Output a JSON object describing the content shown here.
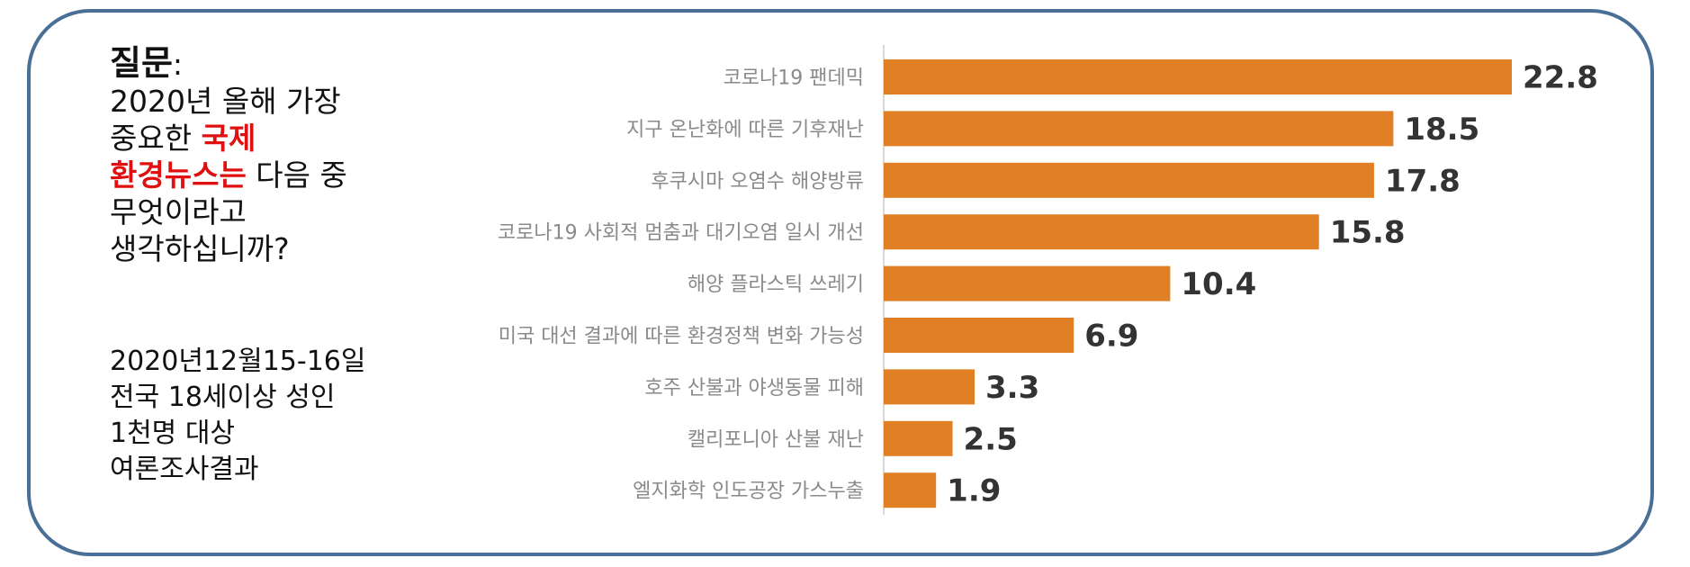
{
  "question": {
    "head": "질문",
    "colon": ":",
    "line1": "2020년 올해 가장",
    "line2_plain": "중요한 ",
    "line2_red": "국제",
    "line3_red": "환경뉴스는",
    "line3_plain": " 다음 중",
    "line4": "무엇이라고",
    "line5": "생각하십니까?"
  },
  "survey": {
    "line1": "2020년12월15-16일",
    "line2": "전국 18세이상 성인",
    "line3": "1천명 대상",
    "line4": "여론조사결과"
  },
  "colors": {
    "bar": "#e07f24",
    "frame": "#4a6f96",
    "highlight": "#e01010"
  },
  "chart_data": {
    "type": "bar",
    "orientation": "horizontal",
    "categories": [
      "코로나19 팬데믹",
      "지구 온난화에 따른 기후재난",
      "후쿠시마 오염수 해양방류",
      "코로나19 사회적 멈춤과 대기오염 일시 개선",
      "해양 플라스틱 쓰레기",
      "미국 대선 결과에 따른 환경정책 변화 가능성",
      "호주 산불과 야생동물 피해",
      "캘리포니아 산불 재난",
      "엘지화학 인도공장 가스누출"
    ],
    "values": [
      22.8,
      18.5,
      17.8,
      15.8,
      10.4,
      6.9,
      3.3,
      2.5,
      1.9
    ],
    "value_labels": [
      "22.8",
      "18.5",
      "17.8",
      "15.8",
      "10.4",
      "6.9",
      "3.3",
      "2.5",
      "1.9"
    ],
    "xlim": [
      0,
      22.8
    ],
    "grid": false,
    "legend": "none"
  }
}
